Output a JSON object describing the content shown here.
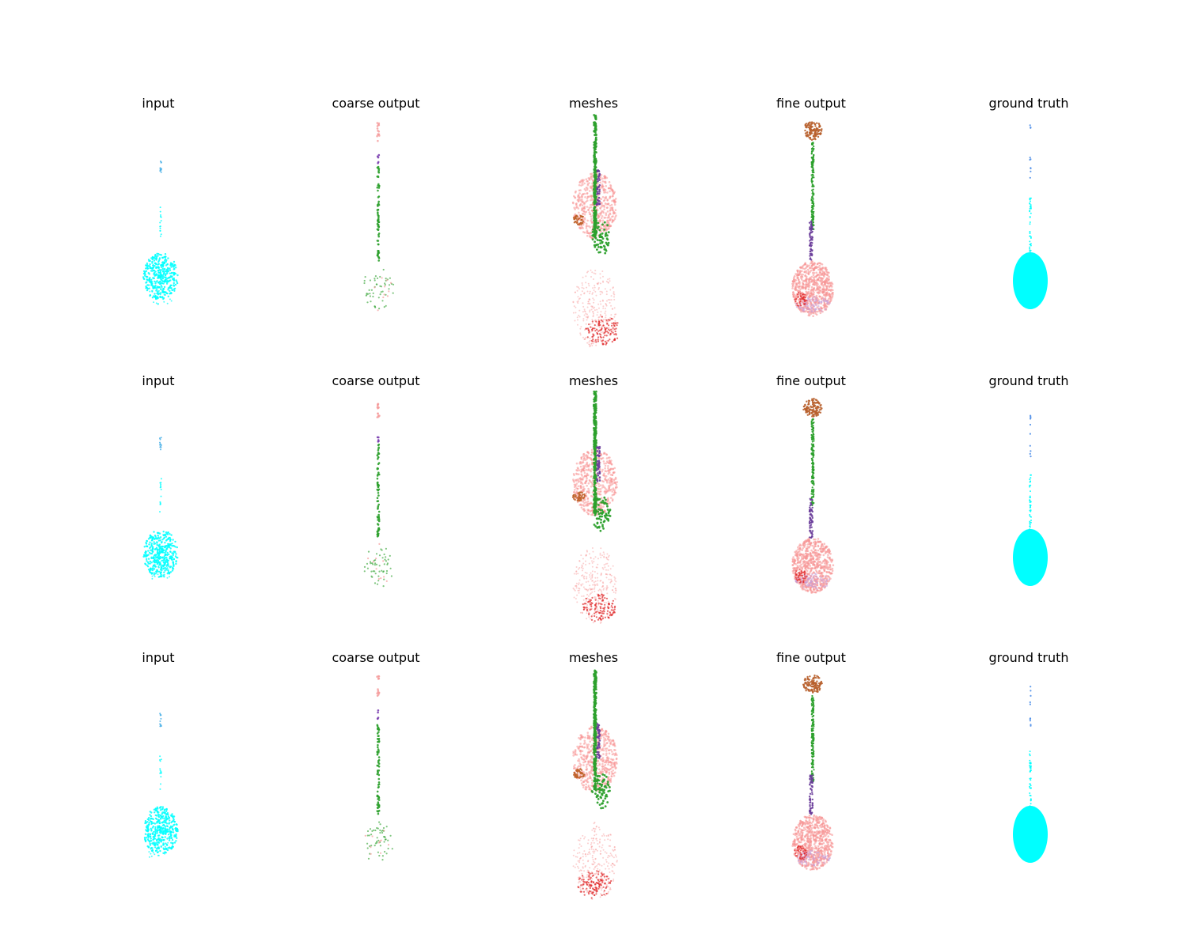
{
  "figure": {
    "rows": [
      {
        "panels": [
          {
            "title": "input"
          },
          {
            "title": "coarse output"
          },
          {
            "title": "meshes"
          },
          {
            "title": "fine output"
          },
          {
            "title": "ground truth"
          }
        ]
      },
      {
        "panels": [
          {
            "title": "input"
          },
          {
            "title": "coarse output"
          },
          {
            "title": "meshes"
          },
          {
            "title": "fine output"
          },
          {
            "title": "ground truth"
          }
        ]
      },
      {
        "panels": [
          {
            "title": "input"
          },
          {
            "title": "coarse output"
          },
          {
            "title": "meshes"
          },
          {
            "title": "fine output"
          },
          {
            "title": "ground truth"
          }
        ]
      }
    ]
  },
  "colors": {
    "input_points": "#00ffff",
    "input_top_points": "#4fb3e8",
    "coarse_top": "#f59a9a",
    "coarse_stem": "#2ca02c",
    "coarse_mid": "#7b3fb0",
    "mesh_pink": "#f79494",
    "mesh_green": "#2ca02c",
    "mesh_purple": "#6a3d9a",
    "mesh_brown": "#c0622a",
    "mesh_red": "#e0282a",
    "fine_pink": "#f79494",
    "fine_green": "#2ca02c",
    "fine_purple": "#6a3d9a",
    "fine_brown": "#b8602e",
    "fine_lavender": "#c8a0d8",
    "ground_truth": "#00ffff",
    "ground_truth_top": "#4f8fe8"
  }
}
